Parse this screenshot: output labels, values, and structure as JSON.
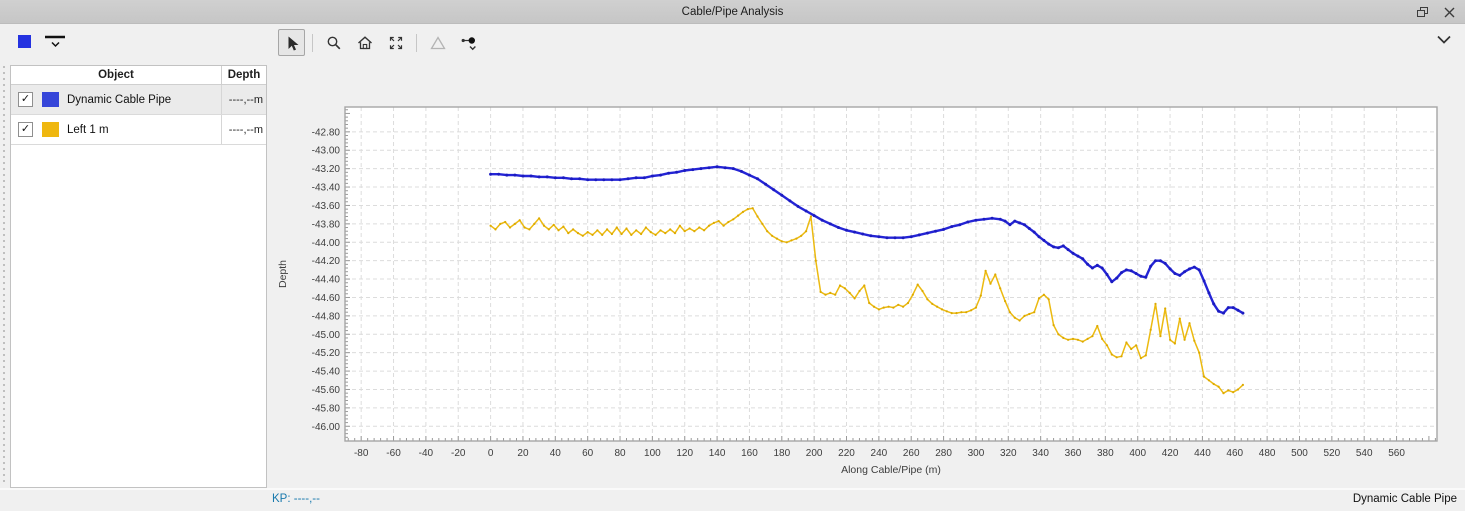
{
  "window": {
    "title": "Cable/Pipe Analysis"
  },
  "titlebar": {
    "buttons": [
      "float-window",
      "close-window"
    ]
  },
  "toolbar": {
    "series_swatch_color": "#2432e0",
    "tools": [
      "select",
      "zoom",
      "home",
      "zoom-extents",
      "triangle",
      "point-marker-dropdown"
    ],
    "active_tool": "select",
    "disabled_tool": "triangle"
  },
  "object_table": {
    "columns": [
      "Object",
      "Depth"
    ],
    "rows": [
      {
        "checked": true,
        "check_glyph": "✓",
        "color": "#3646d9",
        "label": "Dynamic Cable Pipe",
        "depth": "----,--m"
      },
      {
        "checked": true,
        "check_glyph": "✓",
        "color": "#efb70f",
        "label": "Left 1 m",
        "depth": "----,--m"
      }
    ]
  },
  "status": {
    "kp_label": "KP:",
    "kp_value": "----,--",
    "active_object": "Dynamic Cable Pipe"
  },
  "chart_data": {
    "type": "line",
    "title": "",
    "xlabel": "Along Cable/Pipe (m)",
    "ylabel": "Depth",
    "xlim": [
      -90,
      585
    ],
    "ylim": [
      -46.16,
      -42.53
    ],
    "grid": "dashed",
    "legend_position": "none",
    "x_ticks": [
      -80,
      -60,
      -40,
      -20,
      0,
      20,
      40,
      60,
      80,
      100,
      120,
      140,
      160,
      180,
      200,
      220,
      240,
      260,
      280,
      300,
      320,
      340,
      360,
      380,
      400,
      420,
      440,
      460,
      480,
      500,
      520,
      540,
      560
    ],
    "y_ticks": [
      -42.8,
      -43.0,
      -43.2,
      -43.4,
      -43.6,
      -43.8,
      -44.0,
      -44.2,
      -44.4,
      -44.6,
      -44.8,
      -45.0,
      -45.2,
      -45.4,
      -45.6,
      -45.8,
      -46.0
    ],
    "series": [
      {
        "name": "Dynamic Cable Pipe",
        "color": "#2424d6",
        "marker_color": "#1b1bc0",
        "line_width": 2.4,
        "x": [
          0,
          5,
          10,
          15,
          20,
          25,
          30,
          35,
          40,
          45,
          50,
          55,
          60,
          65,
          70,
          75,
          80,
          85,
          90,
          95,
          100,
          105,
          110,
          115,
          120,
          125,
          130,
          135,
          140,
          145,
          150,
          155,
          160,
          165,
          170,
          175,
          180,
          185,
          190,
          195,
          200,
          205,
          210,
          215,
          220,
          225,
          230,
          235,
          240,
          245,
          250,
          255,
          260,
          265,
          270,
          275,
          280,
          285,
          290,
          295,
          300,
          305,
          310,
          315,
          318,
          321,
          324,
          327,
          330,
          333,
          336,
          339,
          342,
          345,
          348,
          351,
          354,
          357,
          360,
          363,
          366,
          369,
          372,
          375,
          378,
          381,
          384,
          387,
          390,
          393,
          396,
          399,
          402,
          405,
          408,
          411,
          414,
          417,
          420,
          423,
          426,
          429,
          432,
          435,
          438,
          441,
          444,
          447,
          450,
          453,
          456,
          459,
          462,
          465
        ],
        "y": [
          -43.26,
          -43.26,
          -43.27,
          -43.27,
          -43.28,
          -43.28,
          -43.29,
          -43.29,
          -43.3,
          -43.3,
          -43.31,
          -43.31,
          -43.32,
          -43.32,
          -43.32,
          -43.32,
          -43.32,
          -43.31,
          -43.3,
          -43.3,
          -43.28,
          -43.27,
          -43.25,
          -43.24,
          -43.22,
          -43.21,
          -43.2,
          -43.19,
          -43.18,
          -43.19,
          -43.2,
          -43.23,
          -43.27,
          -43.31,
          -43.37,
          -43.43,
          -43.49,
          -43.55,
          -43.61,
          -43.66,
          -43.71,
          -43.76,
          -43.8,
          -43.84,
          -43.87,
          -43.89,
          -43.91,
          -43.93,
          -43.94,
          -43.95,
          -43.95,
          -43.95,
          -43.94,
          -43.92,
          -43.9,
          -43.88,
          -43.86,
          -43.83,
          -43.81,
          -43.78,
          -43.76,
          -43.75,
          -43.74,
          -43.75,
          -43.77,
          -43.81,
          -43.77,
          -43.79,
          -43.81,
          -43.85,
          -43.89,
          -43.94,
          -43.98,
          -44.02,
          -44.05,
          -44.06,
          -44.04,
          -44.08,
          -44.12,
          -44.15,
          -44.18,
          -44.24,
          -44.28,
          -44.25,
          -44.28,
          -44.35,
          -44.43,
          -44.39,
          -44.33,
          -44.3,
          -44.31,
          -44.34,
          -44.37,
          -44.38,
          -44.26,
          -44.2,
          -44.2,
          -44.23,
          -44.29,
          -44.34,
          -44.36,
          -44.32,
          -44.29,
          -44.27,
          -44.3,
          -44.42,
          -44.55,
          -44.67,
          -44.75,
          -44.77,
          -44.71,
          -44.71,
          -44.74,
          -44.77
        ]
      },
      {
        "name": "Left 1 m",
        "color": "#ecba10",
        "marker_color": "#dca900",
        "line_width": 1.5,
        "x": [
          0,
          3,
          6,
          9,
          12,
          15,
          18,
          21,
          24,
          27,
          30,
          33,
          36,
          39,
          42,
          45,
          48,
          51,
          54,
          57,
          60,
          63,
          66,
          69,
          72,
          75,
          78,
          81,
          84,
          87,
          90,
          93,
          96,
          99,
          102,
          105,
          108,
          111,
          114,
          117,
          120,
          123,
          126,
          129,
          132,
          135,
          138,
          141,
          144,
          147,
          150,
          153,
          156,
          159,
          162,
          165,
          168,
          171,
          174,
          177,
          180,
          183,
          186,
          189,
          192,
          195,
          198,
          201,
          204,
          207,
          210,
          213,
          216,
          219,
          222,
          225,
          228,
          231,
          234,
          237,
          240,
          243,
          246,
          249,
          252,
          255,
          258,
          261,
          264,
          267,
          270,
          273,
          276,
          279,
          282,
          285,
          288,
          291,
          294,
          297,
          300,
          303,
          306,
          309,
          312,
          315,
          318,
          321,
          324,
          327,
          330,
          333,
          336,
          339,
          342,
          345,
          348,
          351,
          354,
          357,
          360,
          363,
          366,
          369,
          372,
          375,
          378,
          381,
          384,
          387,
          390,
          393,
          396,
          399,
          402,
          405,
          408,
          411,
          414,
          417,
          420,
          423,
          426,
          429,
          432,
          435,
          438,
          441,
          444,
          447,
          450,
          453,
          456,
          459,
          462,
          465
        ],
        "y": [
          -43.82,
          -43.86,
          -43.8,
          -43.78,
          -43.84,
          -43.8,
          -43.76,
          -43.84,
          -43.86,
          -43.8,
          -43.74,
          -43.82,
          -43.86,
          -43.81,
          -43.87,
          -43.83,
          -43.9,
          -43.86,
          -43.9,
          -43.93,
          -43.89,
          -43.92,
          -43.87,
          -43.92,
          -43.86,
          -43.91,
          -43.84,
          -43.91,
          -43.85,
          -43.92,
          -43.87,
          -43.91,
          -43.84,
          -43.89,
          -43.92,
          -43.87,
          -43.9,
          -43.86,
          -43.9,
          -43.82,
          -43.88,
          -43.85,
          -43.88,
          -43.84,
          -43.87,
          -43.82,
          -43.79,
          -43.77,
          -43.82,
          -43.78,
          -43.75,
          -43.71,
          -43.67,
          -43.64,
          -43.63,
          -43.72,
          -43.8,
          -43.88,
          -43.93,
          -43.96,
          -43.99,
          -44.0,
          -43.98,
          -43.96,
          -43.93,
          -43.88,
          -43.72,
          -44.2,
          -44.54,
          -44.57,
          -44.55,
          -44.57,
          -44.47,
          -44.5,
          -44.55,
          -44.61,
          -44.53,
          -44.47,
          -44.66,
          -44.7,
          -44.73,
          -44.71,
          -44.7,
          -44.71,
          -44.68,
          -44.7,
          -44.66,
          -44.57,
          -44.46,
          -44.53,
          -44.62,
          -44.67,
          -44.7,
          -44.73,
          -44.75,
          -44.77,
          -44.77,
          -44.76,
          -44.76,
          -44.74,
          -44.71,
          -44.58,
          -44.31,
          -44.45,
          -44.35,
          -44.5,
          -44.64,
          -44.76,
          -44.82,
          -44.85,
          -44.8,
          -44.78,
          -44.76,
          -44.61,
          -44.57,
          -44.62,
          -44.9,
          -45.0,
          -45.04,
          -45.06,
          -45.05,
          -45.06,
          -45.08,
          -45.05,
          -45.02,
          -44.91,
          -45.05,
          -45.12,
          -45.22,
          -45.25,
          -45.24,
          -45.09,
          -45.16,
          -45.12,
          -45.26,
          -45.23,
          -44.95,
          -44.67,
          -45.02,
          -44.72,
          -45.06,
          -45.1,
          -44.83,
          -45.06,
          -44.88,
          -45.07,
          -45.2,
          -45.46,
          -45.5,
          -45.54,
          -45.57,
          -45.64,
          -45.61,
          -45.63,
          -45.6,
          -45.55
        ]
      }
    ]
  }
}
